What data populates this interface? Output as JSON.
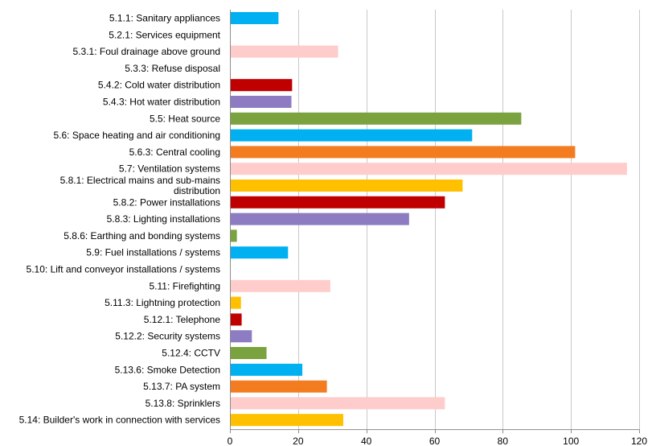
{
  "chart_data": {
    "type": "bar",
    "orientation": "horizontal",
    "title": "",
    "xlabel": "",
    "ylabel": "",
    "xlim": [
      0,
      120
    ],
    "x_ticks": [
      "0",
      "20",
      "40",
      "60",
      "80",
      "100",
      "120"
    ],
    "grid": true,
    "legend": "none",
    "categories": [
      "5.1.1: Sanitary appliances",
      "5.2.1: Services equipment",
      "5.3.1: Foul drainage above ground",
      "5.3.3: Refuse disposal",
      "5.4.2: Cold water distribution",
      "5.4.3: Hot water distribution",
      "5.5: Heat source",
      "5.6: Space heating and air conditioning",
      "5.6.3: Central cooling",
      "5.7: Ventilation systems",
      "5.8.1: Electrical mains and sub-mains distribution",
      "5.8.2: Power installations",
      "5.8.3: Lighting installations",
      "5.8.6: Earthing and bonding systems",
      "5.9: Fuel installations / systems",
      "5.10: Lift and conveyor installations / systems",
      "5.11: Firefighting",
      "5.11.3: Lightning protection",
      "5.12.1: Telephone",
      "5.12.2: Security systems",
      "5.12.4: CCTV",
      "5.13.6: Smoke Detection",
      "5.13.7: PA system",
      "5.13.8: Sprinklers",
      "5.14: Builder's work in connection with services"
    ],
    "values": [
      14,
      0,
      31.5,
      0,
      18,
      17.8,
      85.2,
      70.8,
      101,
      116.2,
      68,
      62.8,
      52.3,
      1.8,
      16.8,
      0,
      29.2,
      3,
      3.2,
      6.2,
      10.5,
      21,
      28.2,
      62.8,
      33
    ],
    "colors": [
      "#00b0f0",
      "#ffcccc",
      "#ffcccc",
      "#ffcccc",
      "#c00000",
      "#8e7cc3",
      "#7aa23f",
      "#00b0f0",
      "#f47c20",
      "#ffcccc",
      "#ffc000",
      "#c00000",
      "#8e7cc3",
      "#7aa23f",
      "#00b0f0",
      "#ffcccc",
      "#ffcccc",
      "#ffc000",
      "#c00000",
      "#8e7cc3",
      "#7aa23f",
      "#00b0f0",
      "#f47c20",
      "#ffcccc",
      "#ffc000"
    ],
    "category_label_lines": [
      [
        "5.1.1: Sanitary appliances"
      ],
      [
        "5.2.1: Services equipment"
      ],
      [
        "5.3.1: Foul drainage above ground"
      ],
      [
        "5.3.3: Refuse disposal"
      ],
      [
        "5.4.2: Cold water distribution"
      ],
      [
        "5.4.3: Hot water distribution"
      ],
      [
        "5.5: Heat source"
      ],
      [
        "5.6: Space heating and air conditioning"
      ],
      [
        "5.6.3: Central cooling"
      ],
      [
        "5.7: Ventilation systems"
      ],
      [
        "5.8.1: Electrical mains and sub-mains",
        "distribution"
      ],
      [
        "5.8.2: Power installations"
      ],
      [
        "5.8.3: Lighting installations"
      ],
      [
        "5.8.6: Earthing and bonding systems"
      ],
      [
        "5.9: Fuel installations / systems"
      ],
      [
        "5.10: Lift and conveyor installations / systems"
      ],
      [
        "5.11: Firefighting"
      ],
      [
        "5.11.3: Lightning protection"
      ],
      [
        "5.12.1: Telephone"
      ],
      [
        "5.12.2: Security systems"
      ],
      [
        "5.12.4: CCTV"
      ],
      [
        "5.13.6: Smoke Detection"
      ],
      [
        "5.13.7: PA system"
      ],
      [
        "5.13.8: Sprinklers"
      ],
      [
        "5.14: Builder's work in connection with services"
      ]
    ]
  }
}
